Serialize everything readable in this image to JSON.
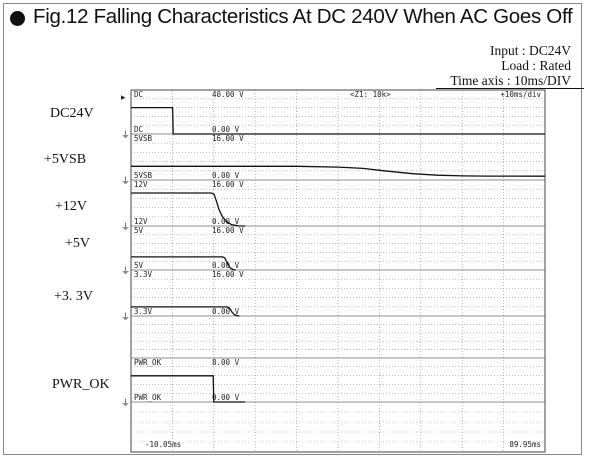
{
  "figure": {
    "title": "Fig.12  Falling Characteristics At DC 240V When AC Goes Off",
    "conditions": [
      "Input : DC24V",
      "Load : Rated",
      "Time axis : 10ms/DIV"
    ]
  },
  "scope": {
    "header_center": "<Z1: 10k>",
    "header_right": "+10ms/div",
    "time_start": "-10.05ms",
    "time_end": "89.95ms"
  },
  "chart_data": {
    "type": "line",
    "title": "Fig.12  Falling Characteristics At DC 240V When AC Goes Off",
    "xlabel": "",
    "ylabel": "",
    "x_unit": "ms",
    "xlim": [
      -10.05,
      89.95
    ],
    "time_per_div": "10ms/DIV",
    "grid": true,
    "series": [
      {
        "name": "DC24V",
        "channel_label": "DC",
        "full_scale_label": "40.00 V",
        "zero_label": "0.00 V",
        "full_scale": 40,
        "points": [
          [
            -10.05,
            24
          ],
          [
            0.0,
            24
          ],
          [
            0.15,
            0
          ],
          [
            89.95,
            0
          ]
        ]
      },
      {
        "name": "+5VSB",
        "channel_label": "5VSB",
        "full_scale_label": "16.00 V",
        "zero_label": "0.00 V",
        "full_scale": 16,
        "points": [
          [
            -10.05,
            5
          ],
          [
            30,
            5
          ],
          [
            40,
            4.7
          ],
          [
            46,
            4.2
          ],
          [
            52,
            3.2
          ],
          [
            58,
            2.3
          ],
          [
            64,
            1.75
          ],
          [
            70,
            1.5
          ],
          [
            76,
            1.42
          ],
          [
            89.95,
            1.4
          ]
        ]
      },
      {
        "name": "+12V",
        "channel_label": "12V",
        "full_scale_label": "16.00 V",
        "zero_label": "0.00 V",
        "full_scale": 16,
        "points": [
          [
            -10.05,
            12
          ],
          [
            9.3,
            12
          ],
          [
            10.0,
            11.6
          ],
          [
            10.6,
            9.0
          ],
          [
            11.2,
            6.0
          ],
          [
            12.0,
            3.5
          ],
          [
            13.0,
            1.6
          ],
          [
            14.2,
            0.5
          ],
          [
            16.0,
            0.05
          ],
          [
            17.5,
            0
          ]
        ]
      },
      {
        "name": "+5V",
        "channel_label": "5V",
        "full_scale_label": "16.00 V",
        "zero_label": "0.00 V",
        "full_scale": 16,
        "points": [
          [
            -10.05,
            5
          ],
          [
            12.1,
            5
          ],
          [
            12.6,
            4.6
          ],
          [
            13.0,
            3.4
          ],
          [
            13.4,
            2.0
          ],
          [
            13.9,
            0.8
          ],
          [
            14.7,
            0.1
          ],
          [
            15.3,
            0
          ]
        ]
      },
      {
        "name": "+3. 3V",
        "channel_label": "3.3V",
        "full_scale_label": "16.00 V",
        "zero_label": "0.00 V",
        "full_scale": 16,
        "points": [
          [
            -10.05,
            3.3
          ],
          [
            13.2,
            3.3
          ],
          [
            13.6,
            3.1
          ],
          [
            14.0,
            2.3
          ],
          [
            14.4,
            1.3
          ],
          [
            14.9,
            0.5
          ],
          [
            15.6,
            0.1
          ],
          [
            16.1,
            0
          ]
        ]
      },
      {
        "name": "PWR_OK",
        "channel_label": "PWR_OK",
        "full_scale_label": "8.00 V",
        "zero_label": "0.00 V",
        "full_scale": 8,
        "points": [
          [
            -10.05,
            5
          ],
          [
            9.8,
            5
          ],
          [
            9.95,
            0
          ],
          [
            17.5,
            0
          ]
        ]
      }
    ]
  }
}
